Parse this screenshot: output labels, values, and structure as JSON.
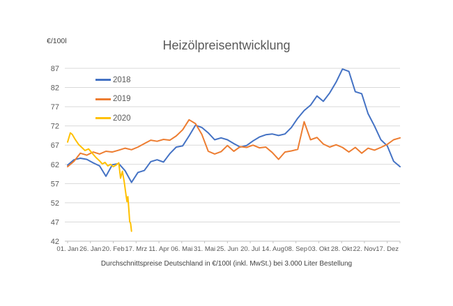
{
  "chart_data": {
    "type": "line",
    "title": "Heizölpreisentwicklung",
    "ylabel": "€/100l",
    "caption": "Durchschnittspreise Deutschland in €/100l (inkl. MwSt.) bei 3.000 Liter Bestellung",
    "grid": "horizontal",
    "legend_position": "inside-top-left",
    "ylim": [
      42,
      87
    ],
    "y_ticks": [
      42,
      47,
      52,
      57,
      62,
      67,
      72,
      77,
      82,
      87
    ],
    "x_tick_labels": [
      "01. Jan",
      "26. Jan",
      "20. Feb",
      "17. Mrz",
      "11. Apr",
      "06. Mai",
      "31. Mai",
      "25. Jun",
      "20. Jul",
      "14. Aug",
      "08. Sep",
      "03. Okt",
      "28. Okt",
      "22. Nov",
      "17. Dez"
    ],
    "x_tick_interval_days": 25,
    "x_range_days": 364,
    "axis_color": "#bfbfbf",
    "gridline_color": "#d9d9d9",
    "series": [
      {
        "name": "2018",
        "color": "#4472C4",
        "day_step": 7,
        "values": [
          61.8,
          63.2,
          63.6,
          63.3,
          62.4,
          61.6,
          58.9,
          61.9,
          62.2,
          60.3,
          57.3,
          59.9,
          60.4,
          62.7,
          63.2,
          62.6,
          64.8,
          66.5,
          66.8,
          69.4,
          72.2,
          71.6,
          70.2,
          68.4,
          68.9,
          68.4,
          67.4,
          66.5,
          66.9,
          68.1,
          69.1,
          69.7,
          69.9,
          69.5,
          69.9,
          71.6,
          74.0,
          76.0,
          77.4,
          79.8,
          78.4,
          80.6,
          83.4,
          86.8,
          86.2,
          80.9,
          80.4,
          75.2,
          72.0,
          68.4,
          66.8,
          62.8,
          61.4
        ]
      },
      {
        "name": "2019",
        "color": "#ED7D31",
        "day_step": 7,
        "values": [
          61.4,
          62.8,
          64.9,
          64.4,
          65.2,
          64.7,
          65.4,
          65.2,
          65.7,
          66.2,
          65.8,
          66.5,
          67.4,
          68.3,
          68.0,
          68.5,
          68.3,
          69.4,
          71.0,
          73.6,
          72.6,
          69.8,
          65.4,
          64.7,
          65.3,
          66.9,
          65.4,
          66.6,
          66.4,
          67.0,
          66.3,
          66.5,
          65.1,
          63.3,
          65.2,
          65.5,
          65.9,
          73.1,
          68.4,
          69.0,
          67.3,
          66.5,
          67.1,
          66.4,
          65.2,
          66.4,
          64.9,
          66.2,
          65.7,
          66.4,
          67.2,
          68.4,
          68.9
        ]
      },
      {
        "name": "2020",
        "color": "#FFC000",
        "points": [
          [
            0,
            67.8
          ],
          [
            3,
            70.2
          ],
          [
            5,
            69.8
          ],
          [
            8,
            68.6
          ],
          [
            12,
            67.2
          ],
          [
            16,
            66.3
          ],
          [
            19,
            65.6
          ],
          [
            23,
            66.0
          ],
          [
            27,
            64.9
          ],
          [
            31,
            63.8
          ],
          [
            35,
            62.9
          ],
          [
            38,
            62.1
          ],
          [
            41,
            62.5
          ],
          [
            44,
            61.6
          ],
          [
            47,
            62.0
          ],
          [
            50,
            61.4
          ],
          [
            53,
            61.8
          ],
          [
            56,
            62.4
          ],
          [
            58,
            58.4
          ],
          [
            60,
            60.2
          ],
          [
            62,
            57.5
          ],
          [
            64,
            53.9
          ],
          [
            65,
            52.3
          ],
          [
            66,
            53.6
          ],
          [
            67,
            50.4
          ],
          [
            68,
            47.1
          ],
          [
            69,
            46.6
          ],
          [
            70,
            44.6
          ]
        ]
      }
    ]
  }
}
